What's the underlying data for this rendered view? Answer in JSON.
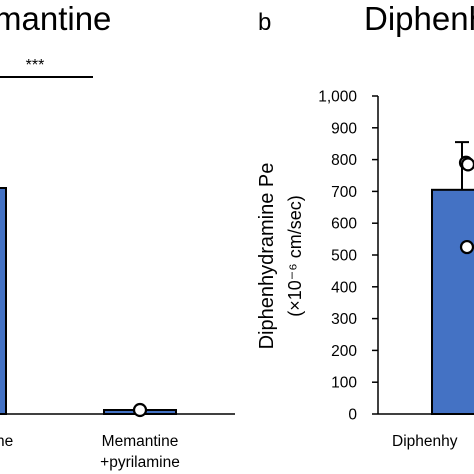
{
  "panels": {
    "a": {
      "title_fragment": "mantine"
    },
    "b": {
      "letter": "b",
      "title_fragment": "Diphenh"
    }
  },
  "colors": {
    "bar": "#4472C4",
    "axis": "#000000",
    "point_fill": "#ffffff"
  },
  "chart_data": [
    {
      "type": "bar",
      "title": "mantine",
      "categories": [
        "ne",
        "Memantine\n+pyrilamine"
      ],
      "values": [
        null,
        4
      ],
      "individual_points": [
        [],
        [
          4
        ]
      ],
      "significance": [
        {
          "between": [
            "ne",
            "Memantine\n+pyrilamine"
          ],
          "label": "***"
        }
      ],
      "ylabel": "",
      "grid": false
    },
    {
      "type": "bar",
      "title": "Diphenh",
      "categories": [
        "Diphenhy"
      ],
      "values": [
        705
      ],
      "error_upper": [
        855
      ],
      "individual_points": [
        [
          790,
          785,
          525
        ]
      ],
      "ylabel": "Diphenhydramine Pe",
      "ylabel_unit": "(×10⁻⁶ cm/sec)",
      "ylim": [
        0,
        1000
      ],
      "yticks": [
        "0",
        "100",
        "200",
        "300",
        "400",
        "500",
        "600",
        "700",
        "800",
        "900",
        "1,000"
      ],
      "grid": false
    }
  ]
}
